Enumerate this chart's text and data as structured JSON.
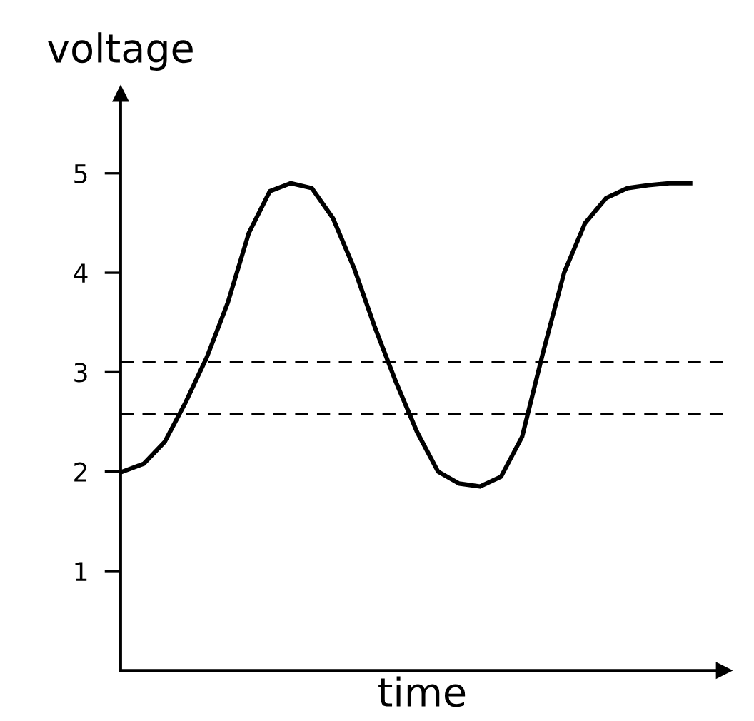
{
  "chart_data": {
    "type": "line",
    "xlabel": "time",
    "ylabel": "voltage",
    "categories": [
      null,
      null,
      null,
      null,
      null,
      null,
      null,
      null,
      null,
      null,
      null,
      null,
      null,
      null,
      null,
      null,
      null,
      null,
      null,
      null,
      null,
      null,
      null,
      null,
      null,
      null,
      null,
      null
    ],
    "series": [
      {
        "color": "#000000",
        "values": [
          2.0,
          2.08,
          2.3,
          2.7,
          3.15,
          3.7,
          4.4,
          4.82,
          4.9,
          4.85,
          4.55,
          4.05,
          3.45,
          2.9,
          2.4,
          2.0,
          1.88,
          1.85,
          1.95,
          2.35,
          3.2,
          4.0,
          4.5,
          4.75,
          4.85,
          4.88,
          4.9,
          4.9
        ]
      }
    ],
    "ylim": [
      0,
      5.8
    ],
    "yticks": [
      1,
      2,
      3,
      4,
      5
    ],
    "ref_lines": [
      {
        "axis": "y",
        "value": 3.1,
        "line_style": "dashed",
        "color": "#000000"
      },
      {
        "axis": "y",
        "value": 2.58,
        "line_style": "dashed",
        "color": "#000000"
      }
    ],
    "tick_labels": "y",
    "grid": false,
    "legend": false,
    "marker": "none",
    "line_style": "solid"
  }
}
